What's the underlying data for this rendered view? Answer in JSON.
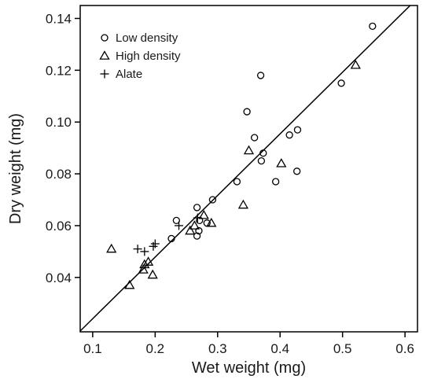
{
  "chart_data": {
    "type": "scatter",
    "xlabel": "Wet weight (mg)",
    "ylabel": "Dry weight (mg)",
    "xlim": [
      0.08,
      0.62
    ],
    "ylim": [
      0.019,
      0.145
    ],
    "xticks": [
      0.1,
      0.2,
      0.3,
      0.4,
      0.5,
      0.6
    ],
    "yticks": [
      0.04,
      0.06,
      0.08,
      0.1,
      0.12,
      0.14
    ],
    "xtick_labels": [
      "0.1",
      "0.2",
      "0.3",
      "0.4",
      "0.5",
      "0.6"
    ],
    "ytick_labels": [
      "0.04",
      "0.06",
      "0.08",
      "0.10",
      "0.12",
      "0.14"
    ],
    "legend_position": "top-left",
    "series": [
      {
        "name": "Low density",
        "marker": "circle",
        "points": [
          [
            0.548,
            0.137
          ],
          [
            0.498,
            0.115
          ],
          [
            0.369,
            0.118
          ],
          [
            0.347,
            0.104
          ],
          [
            0.428,
            0.097
          ],
          [
            0.415,
            0.095
          ],
          [
            0.359,
            0.094
          ],
          [
            0.373,
            0.088
          ],
          [
            0.37,
            0.085
          ],
          [
            0.427,
            0.081
          ],
          [
            0.393,
            0.077
          ],
          [
            0.331,
            0.077
          ],
          [
            0.292,
            0.07
          ],
          [
            0.267,
            0.067
          ],
          [
            0.234,
            0.062
          ],
          [
            0.271,
            0.062
          ],
          [
            0.283,
            0.061
          ],
          [
            0.226,
            0.055
          ],
          [
            0.267,
            0.056
          ],
          [
            0.27,
            0.058
          ]
        ]
      },
      {
        "name": "High density",
        "marker": "triangle",
        "points": [
          [
            0.521,
            0.122
          ],
          [
            0.35,
            0.089
          ],
          [
            0.402,
            0.084
          ],
          [
            0.341,
            0.068
          ],
          [
            0.278,
            0.064
          ],
          [
            0.29,
            0.061
          ],
          [
            0.263,
            0.06
          ],
          [
            0.256,
            0.058
          ],
          [
            0.13,
            0.051
          ],
          [
            0.183,
            0.045
          ],
          [
            0.189,
            0.046
          ],
          [
            0.181,
            0.043
          ],
          [
            0.196,
            0.041
          ],
          [
            0.159,
            0.037
          ]
        ]
      },
      {
        "name": "Alate",
        "marker": "plus",
        "points": [
          [
            0.172,
            0.051
          ],
          [
            0.183,
            0.05
          ],
          [
            0.197,
            0.052
          ],
          [
            0.2,
            0.053
          ],
          [
            0.238,
            0.06
          ],
          [
            0.268,
            0.063
          ]
        ]
      }
    ],
    "fit_line": {
      "x": [
        0.08,
        0.62
      ],
      "y": [
        0.0193,
        0.1478
      ]
    }
  }
}
